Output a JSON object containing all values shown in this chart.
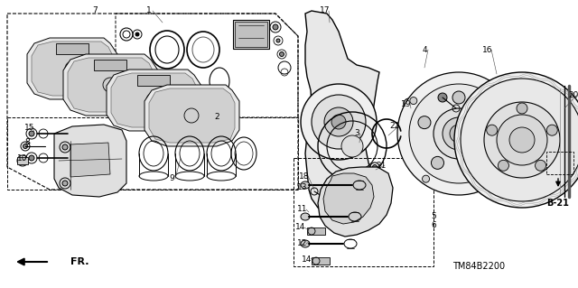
{
  "bg_color": "#ffffff",
  "fig_width": 6.4,
  "fig_height": 3.19,
  "dpi": 100,
  "diagram_code": "TM84B2200",
  "ref_label": "B-21",
  "fr_label": "FR."
}
